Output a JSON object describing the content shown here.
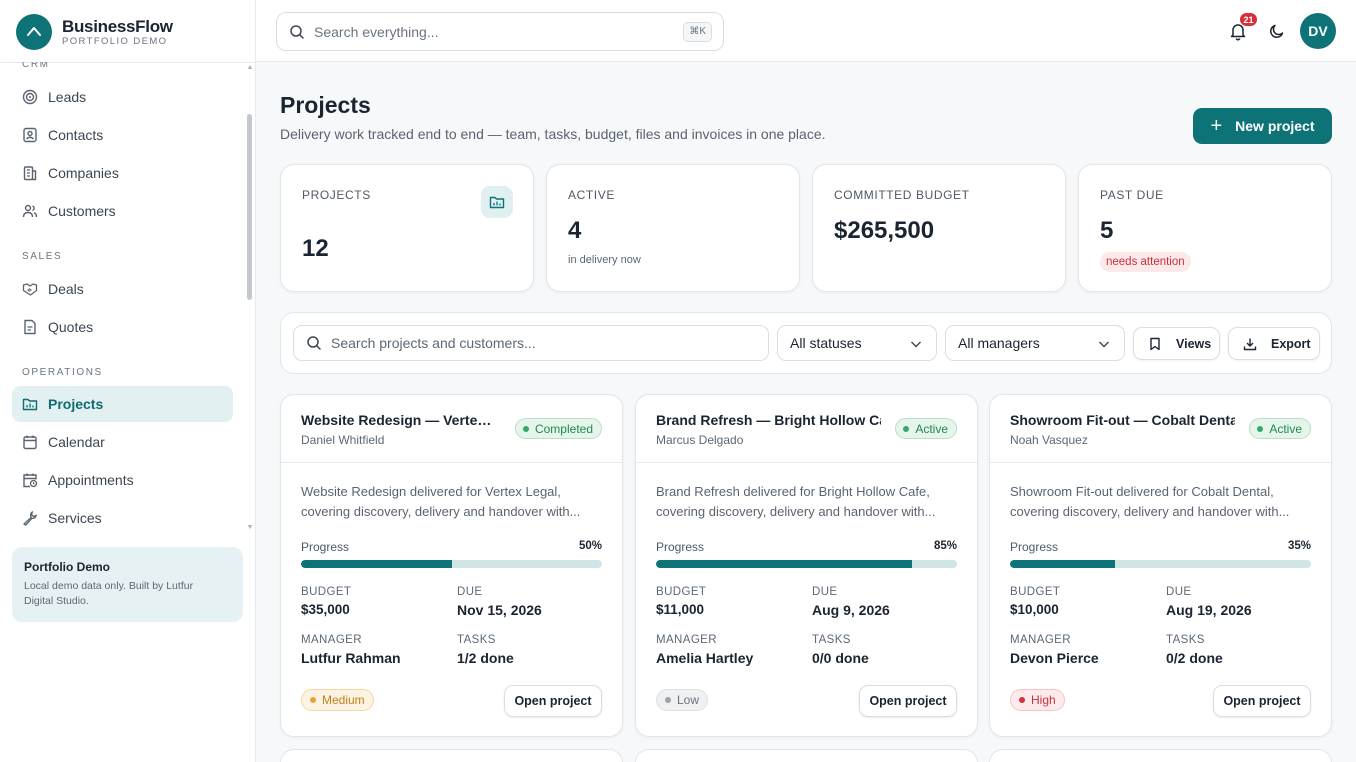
{
  "brand": {
    "name": "BusinessFlow",
    "subtitle": "PORTFOLIO DEMO"
  },
  "sidebar": {
    "sections": [
      {
        "label": "CRM"
      },
      {
        "label": "SALES"
      },
      {
        "label": "OPERATIONS"
      }
    ],
    "items": [
      {
        "label": "Leads",
        "icon": "target-icon"
      },
      {
        "label": "Contacts",
        "icon": "contact-card-icon"
      },
      {
        "label": "Companies",
        "icon": "building-icon"
      },
      {
        "label": "Customers",
        "icon": "users-icon"
      },
      {
        "label": "Deals",
        "icon": "handshake-icon"
      },
      {
        "label": "Quotes",
        "icon": "document-icon"
      },
      {
        "label": "Projects",
        "icon": "folder-chart-icon",
        "active": true
      },
      {
        "label": "Calendar",
        "icon": "calendar-icon"
      },
      {
        "label": "Appointments",
        "icon": "calendar-clock-icon"
      },
      {
        "label": "Services",
        "icon": "wrench-icon"
      }
    ],
    "demo": {
      "title": "Portfolio Demo",
      "text_line1": "Local demo data only. Built by Lutfur",
      "text_line2": "Digital Studio."
    }
  },
  "topbar": {
    "search_placeholder": "Search everything...",
    "shortcut": "⌘K",
    "notifications_count": "21",
    "avatar_initials": "DV"
  },
  "page": {
    "title": "Projects",
    "subtitle": "Delivery work tracked end to end — team, tasks, budget, files and invoices in one place.",
    "new_button": "New project"
  },
  "stats": [
    {
      "label": "PROJECTS",
      "value": "12"
    },
    {
      "label": "ACTIVE",
      "value": "4",
      "note": "in delivery now"
    },
    {
      "label": "COMMITTED BUDGET",
      "value": "$265,500"
    },
    {
      "label": "PAST DUE",
      "value": "5",
      "pill": "needs attention"
    }
  ],
  "filters": {
    "search_placeholder": "Search projects and customers...",
    "status": "All statuses",
    "manager": "All managers",
    "views": "Views",
    "export": "Export"
  },
  "labels": {
    "progress": "Progress",
    "budget": "BUDGET",
    "due": "DUE",
    "manager": "MANAGER",
    "tasks": "TASKS",
    "open": "Open project"
  },
  "projects": [
    {
      "title": "Website Redesign — Vertex L...",
      "customer": "Daniel Whitfield",
      "status": "Completed",
      "desc_line1": "Website Redesign delivered for Vertex Legal,",
      "desc_line2": "covering discovery, delivery and handover with...",
      "progress": 50,
      "progress_label": "50%",
      "budget": "$35,000",
      "due": "Nov 15, 2026",
      "manager": "Lutfur Rahman",
      "tasks": "1/2 done",
      "priority": "Medium"
    },
    {
      "title": "Brand Refresh — Bright Hollow Cafe",
      "customer": "Marcus Delgado",
      "status": "Active",
      "desc_line1": "Brand Refresh delivered for Bright Hollow Cafe,",
      "desc_line2": "covering discovery, delivery and handover with...",
      "progress": 85,
      "progress_label": "85%",
      "budget": "$11,000",
      "due": "Aug 9, 2026",
      "manager": "Amelia Hartley",
      "tasks": "0/0 done",
      "priority": "Low"
    },
    {
      "title": "Showroom Fit-out — Cobalt Dental",
      "customer": "Noah Vasquez",
      "status": "Active",
      "desc_line1": "Showroom Fit-out delivered for Cobalt Dental,",
      "desc_line2": "covering discovery, delivery and handover with...",
      "progress": 35,
      "progress_label": "35%",
      "budget": "$10,000",
      "due": "Aug 19, 2026",
      "manager": "Devon Pierce",
      "tasks": "0/2 done",
      "priority": "High"
    }
  ],
  "colors": {
    "accent": "#0d7377",
    "priority_medium": "#e9a23b",
    "priority_low": "#9aa3ad",
    "priority_high": "#d6303a"
  }
}
